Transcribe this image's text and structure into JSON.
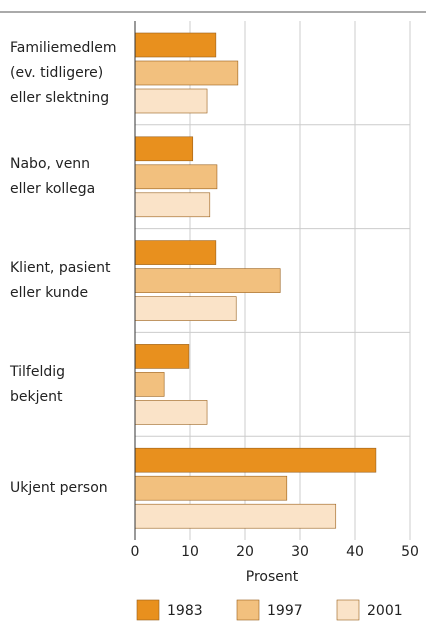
{
  "chart_data": {
    "type": "bar",
    "orientation": "horizontal",
    "categories": [
      "Familiemedlem\n(ev. tidligere)\neller slektning",
      "Nabo, venn\neller kollega",
      "Klient, pasient\neller kunde",
      "Tilfeldig\nbekjent",
      "Ukjent person"
    ],
    "series": [
      {
        "name": "1983",
        "color": "#e8901e",
        "values": [
          14.7,
          10.5,
          14.7,
          9.8,
          43.8
        ]
      },
      {
        "name": "1997",
        "color": "#f2c07e",
        "values": [
          18.7,
          14.9,
          26.4,
          5.3,
          27.6
        ]
      },
      {
        "name": "2001",
        "color": "#fae3c8",
        "values": [
          13.1,
          13.6,
          18.4,
          13.1,
          36.5
        ]
      }
    ],
    "xlabel": "Prosent",
    "xlim": [
      0,
      50
    ],
    "xticks": [
      0,
      10,
      20,
      30,
      40,
      50
    ],
    "grid": true
  }
}
